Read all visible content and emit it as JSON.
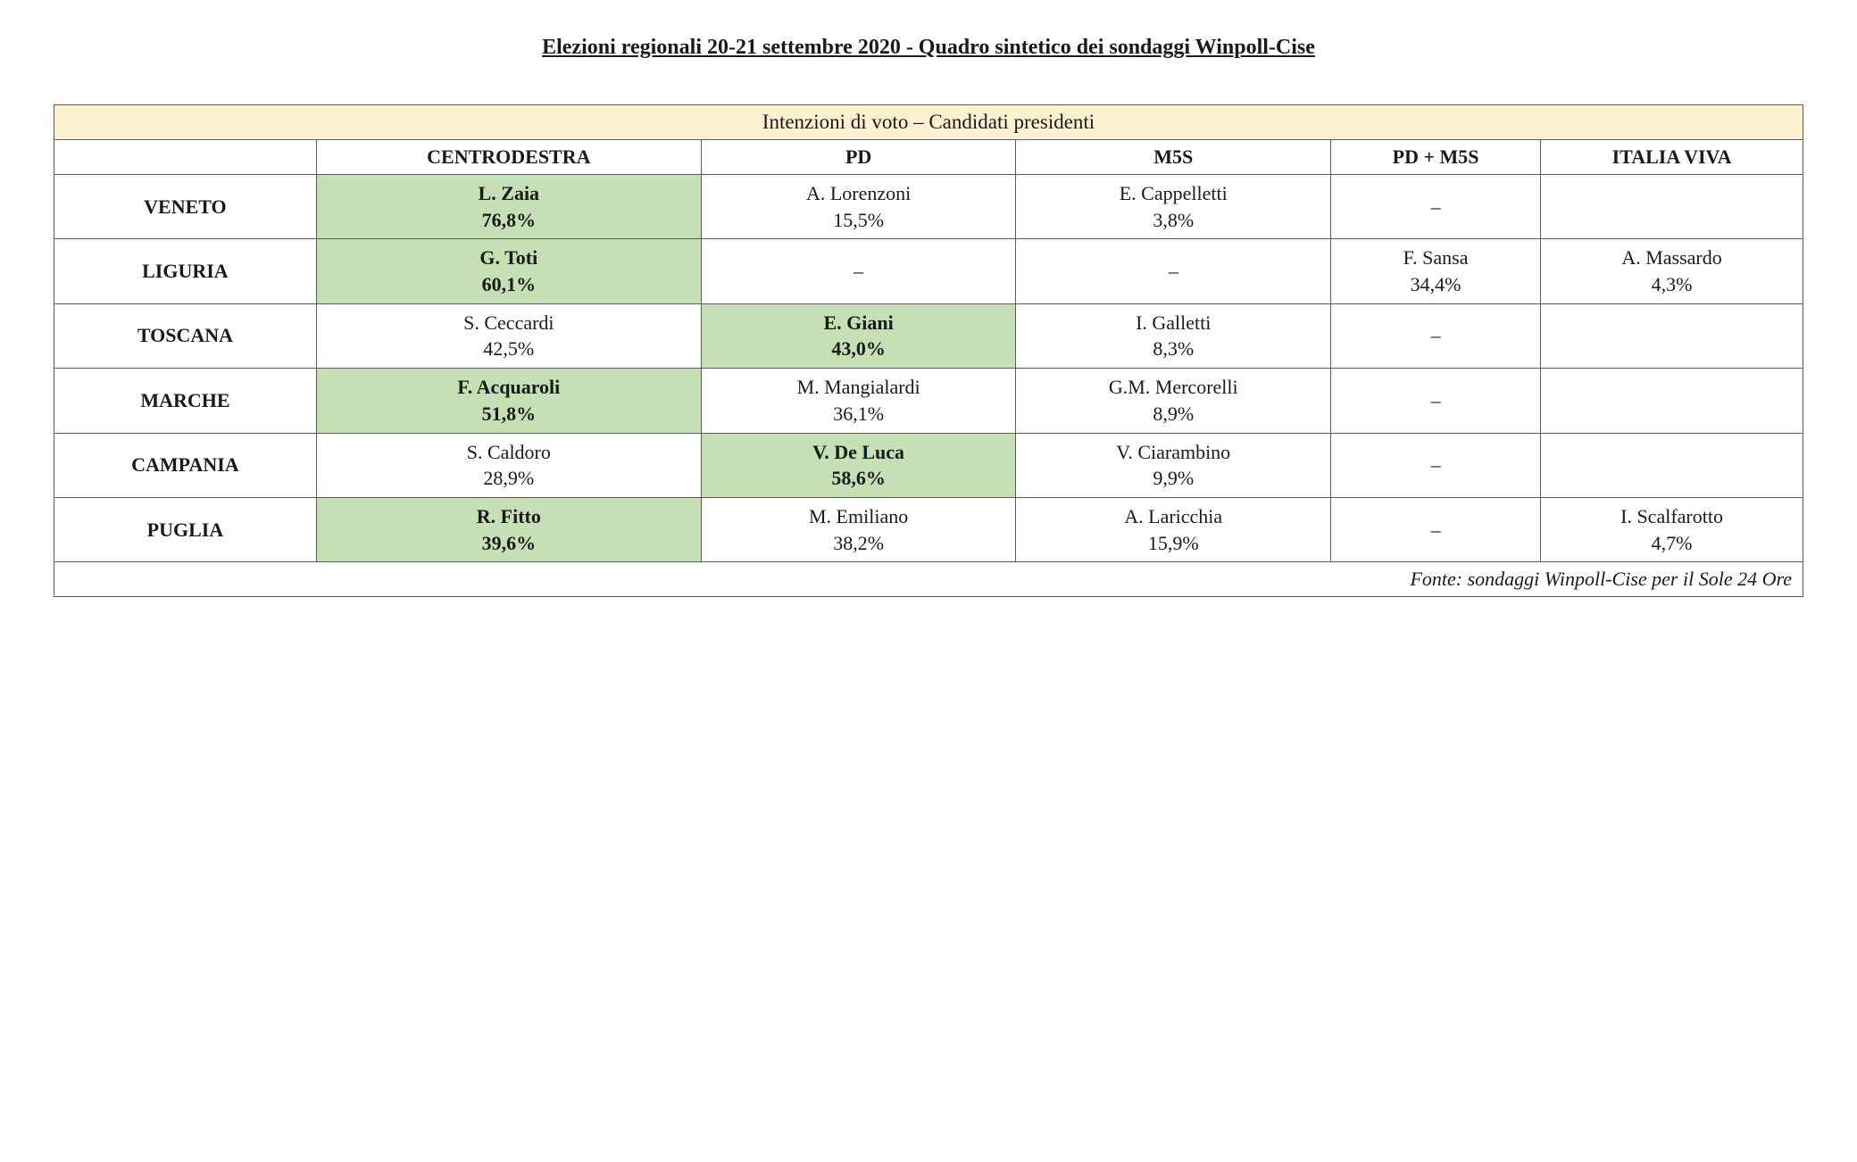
{
  "title": "Elezioni regionali 20-21 settembre 2020 - Quadro sintetico dei sondaggi Winpoll-Cise",
  "table": {
    "banner": "Intenzioni di voto – Candidati presidenti",
    "columns": [
      "",
      "CENTRODESTRA",
      "PD",
      "M5S",
      "PD + M5S",
      "ITALIA VIVA"
    ],
    "rows": [
      {
        "label": "VENETO",
        "cells": [
          {
            "name": "L. Zaia",
            "pct": "76,8%",
            "highlight": true
          },
          {
            "name": "A. Lorenzoni",
            "pct": "15,5%",
            "highlight": false
          },
          {
            "name": "E. Cappelletti",
            "pct": "3,8%",
            "highlight": false
          },
          {
            "dash": true
          },
          {
            "empty": true
          }
        ]
      },
      {
        "label": "LIGURIA",
        "cells": [
          {
            "name": "G. Toti",
            "pct": "60,1%",
            "highlight": true
          },
          {
            "dash": true
          },
          {
            "dash": true
          },
          {
            "name": "F. Sansa",
            "pct": "34,4%",
            "highlight": false
          },
          {
            "name": "A. Massardo",
            "pct": "4,3%",
            "highlight": false
          }
        ]
      },
      {
        "label": "TOSCANA",
        "cells": [
          {
            "name": "S. Ceccardi",
            "pct": "42,5%",
            "highlight": false
          },
          {
            "name": "E. Giani",
            "pct": "43,0%",
            "highlight": true
          },
          {
            "name": "I. Galletti",
            "pct": "8,3%",
            "highlight": false
          },
          {
            "dash": true
          },
          {
            "empty": true
          }
        ]
      },
      {
        "label": "MARCHE",
        "cells": [
          {
            "name": "F. Acquaroli",
            "pct": "51,8%",
            "highlight": true
          },
          {
            "name": "M. Mangialardi",
            "pct": "36,1%",
            "highlight": false
          },
          {
            "name": "G.M. Mercorelli",
            "pct": "8,9%",
            "highlight": false
          },
          {
            "dash": true
          },
          {
            "empty": true
          }
        ]
      },
      {
        "label": "CAMPANIA",
        "cells": [
          {
            "name": "S. Caldoro",
            "pct": "28,9%",
            "highlight": false
          },
          {
            "name": "V. De Luca",
            "pct": "58,6%",
            "highlight": true
          },
          {
            "name": "V. Ciarambino",
            "pct": "9,9%",
            "highlight": false
          },
          {
            "dash": true
          },
          {
            "empty": true
          }
        ]
      },
      {
        "label": "PUGLIA",
        "cells": [
          {
            "name": "R. Fitto",
            "pct": "39,6%",
            "highlight": true
          },
          {
            "name": "M. Emiliano",
            "pct": "38,2%",
            "highlight": false
          },
          {
            "name": "A. Laricchia",
            "pct": "15,9%",
            "highlight": false
          },
          {
            "dash": true
          },
          {
            "name": "I. Scalfarotto",
            "pct": "4,7%",
            "highlight": false
          }
        ]
      }
    ],
    "source": "Fonte: sondaggi Winpoll-Cise per il Sole 24 Ore"
  },
  "colors": {
    "banner_bg": "#fdf1cf",
    "highlight_bg": "#c5e0b4",
    "border": "#5a5a5a",
    "text": "#1a1a1a",
    "background": "#ffffff"
  }
}
